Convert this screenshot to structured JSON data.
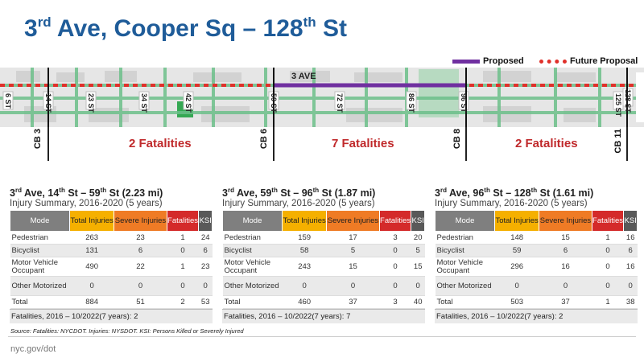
{
  "title": {
    "pre": "3",
    "sup1": "rd",
    "mid": " Ave, Cooper Sq – 128",
    "sup2": "th",
    "post": " St"
  },
  "legend": {
    "proposed": "Proposed",
    "future": "Future Proposal"
  },
  "colors": {
    "title": "#1f5c99",
    "proposed": "#7030a0",
    "future": "#e0302a",
    "fatal_text": "#c0292b"
  },
  "map": {
    "avenue_label": "3 AVE",
    "streets": [
      "6 ST",
      "14 ST",
      "23 ST",
      "34 ST",
      "42 ST",
      "59 ST",
      "72 ST",
      "86 ST",
      "96 ST",
      "125 ST",
      "128 ST"
    ]
  },
  "boards": {
    "cb3": "CB 3",
    "cb6": "CB 6",
    "cb8": "CB 8",
    "cb11": "CB 11"
  },
  "fatalities": {
    "seg1": "2 Fatalities",
    "seg2": "7 Fatalities",
    "seg3": "2 Fatalities"
  },
  "table_headers": {
    "mode": "Mode",
    "total": "Total Injuries",
    "severe": "Severe Injuries",
    "fatal": "Fatalities",
    "ksi": "KSI"
  },
  "modes": [
    "Pedestrian",
    "Bicyclist",
    "Motor Vehicle Occupant",
    "Other Motorized",
    "Total"
  ],
  "panels": [
    {
      "pre": "3",
      "sup1": "rd",
      "mid": " Ave, 14",
      "sup2": "th",
      "mid2": " St – 59",
      "sup3": "th",
      "post": " St (2.23 mi)",
      "subtitle": "Injury Summary, 2016-2020 (5 years)",
      "rows": [
        [
          "263",
          "23",
          "1",
          "24"
        ],
        [
          "131",
          "6",
          "0",
          "6"
        ],
        [
          "490",
          "22",
          "1",
          "23"
        ],
        [
          "0",
          "0",
          "0",
          "0"
        ],
        [
          "884",
          "51",
          "2",
          "53"
        ]
      ],
      "footer": "Fatalities, 2016 – 10/2022(7 years): 2"
    },
    {
      "pre": "3",
      "sup1": "rd",
      "mid": " Ave, 59",
      "sup2": "th",
      "mid2": " St – 96",
      "sup3": "th",
      "post": " St (1.87 mi)",
      "subtitle": "Injury Summary, 2016-2020 (5 years)",
      "rows": [
        [
          "159",
          "17",
          "3",
          "20"
        ],
        [
          "58",
          "5",
          "0",
          "5"
        ],
        [
          "243",
          "15",
          "0",
          "15"
        ],
        [
          "0",
          "0",
          "0",
          "0"
        ],
        [
          "460",
          "37",
          "3",
          "40"
        ]
      ],
      "footer": "Fatalities, 2016 – 10/2022(7 years): 7"
    },
    {
      "pre": "3",
      "sup1": "rd",
      "mid": " Ave, 96",
      "sup2": "th",
      "mid2": " St – 128",
      "sup3": "th",
      "post": " St (1.61 mi)",
      "subtitle": "Injury Summary, 2016-2020 (5 years)",
      "rows": [
        [
          "148",
          "15",
          "1",
          "16"
        ],
        [
          "59",
          "6",
          "0",
          "6"
        ],
        [
          "296",
          "16",
          "0",
          "16"
        ],
        [
          "0",
          "0",
          "0",
          "0"
        ],
        [
          "503",
          "37",
          "1",
          "38"
        ]
      ],
      "footer": "Fatalities, 2016 – 10/2022(7 years): 2"
    }
  ],
  "source": "Source: Fatalities: NYCDOT. Injuries: NYSDOT. KSI: Persons Killed or Severely Injured",
  "footer_url": "nyc.gov/dot"
}
